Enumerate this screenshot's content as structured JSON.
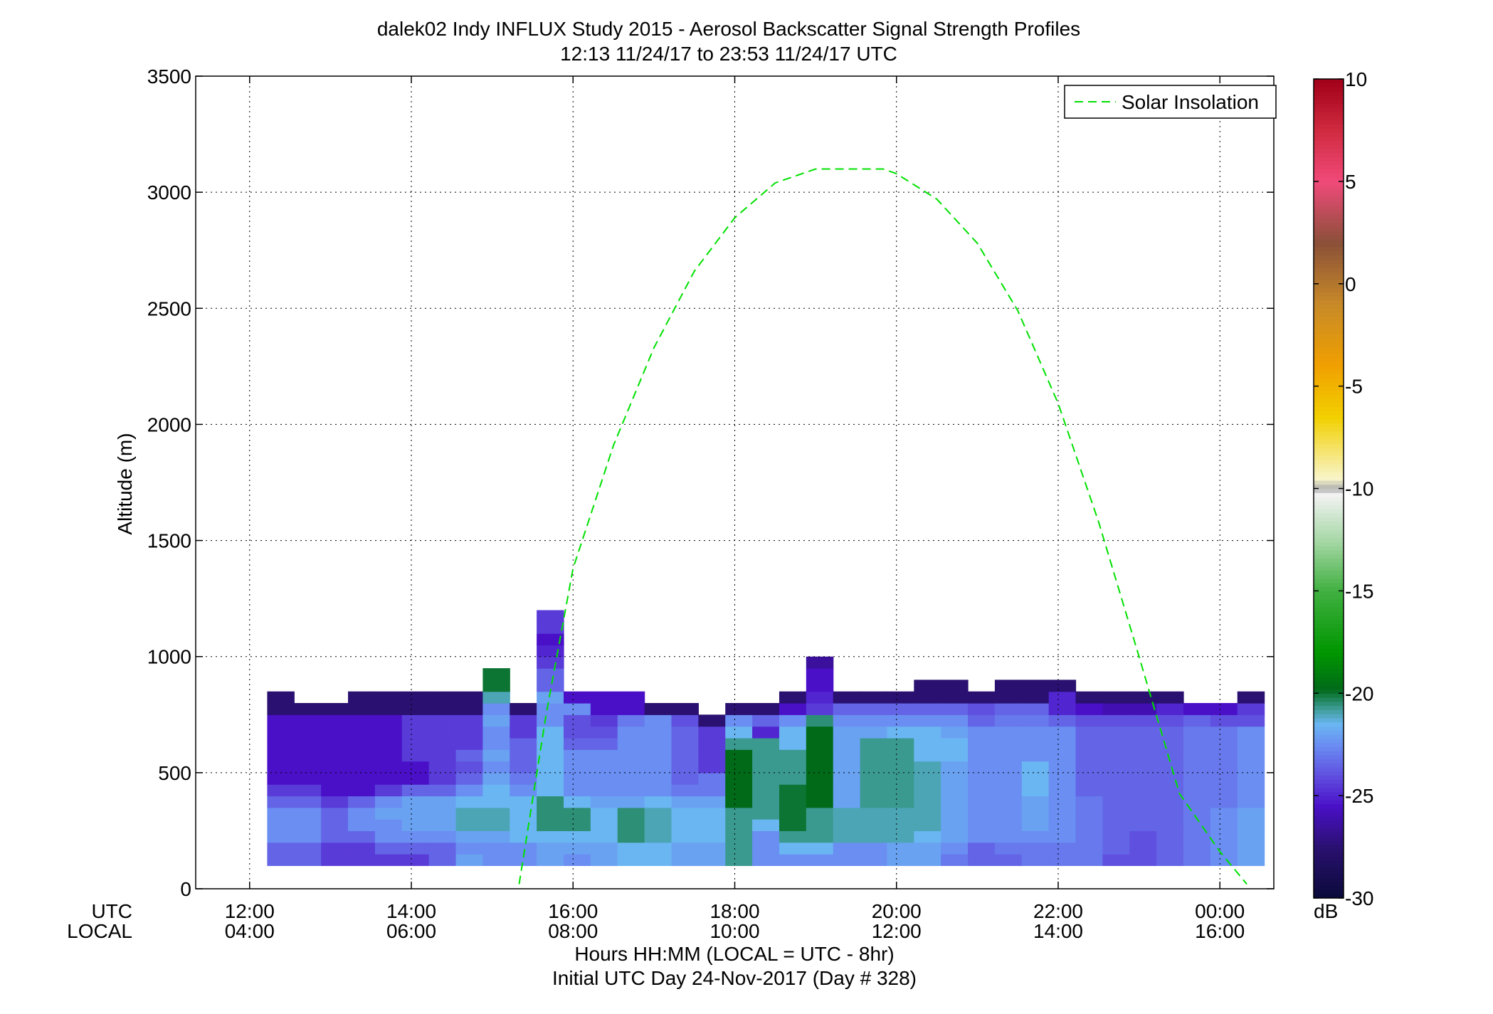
{
  "chart_data": {
    "type": "heatmap",
    "title": "dalek02 Indy INFLUX Study 2015 - Aerosol Backscatter Signal Strength Profiles",
    "subtitle": "12:13 11/24/17 to 23:53 11/24/17  UTC",
    "ylabel": "Altitude (m)",
    "xlabel": "Hours HH:MM  (LOCAL = UTC - 8hr)",
    "xlabel2": "Initial UTC Day 24-Nov-2017 (Day # 328)",
    "axis_row_labels": [
      "UTC",
      "LOCAL"
    ],
    "x_unit": "hours UTC",
    "xlim": [
      11.333,
      24.667
    ],
    "ylim": [
      0,
      3500
    ],
    "grid": true,
    "legend": {
      "position": "top-right",
      "entries": [
        "Solar Insolation"
      ]
    },
    "x_ticks": [
      {
        "value": 12,
        "utc": "12:00",
        "local": "04:00"
      },
      {
        "value": 14,
        "utc": "14:00",
        "local": "06:00"
      },
      {
        "value": 16,
        "utc": "16:00",
        "local": "08:00"
      },
      {
        "value": 18,
        "utc": "18:00",
        "local": "10:00"
      },
      {
        "value": 20,
        "utc": "20:00",
        "local": "12:00"
      },
      {
        "value": 22,
        "utc": "22:00",
        "local": "14:00"
      },
      {
        "value": 24,
        "utc": "00:00",
        "local": "16:00"
      }
    ],
    "y_ticks": [
      {
        "value": 0,
        "label": "0"
      },
      {
        "value": 500,
        "label": "500"
      },
      {
        "value": 1000,
        "label": "1000"
      },
      {
        "value": 1500,
        "label": "1500"
      },
      {
        "value": 2000,
        "label": "2000"
      },
      {
        "value": 2500,
        "label": "2500"
      },
      {
        "value": 3000,
        "label": "3000"
      },
      {
        "value": 3500,
        "label": "3500"
      }
    ],
    "colorbar": {
      "unit": "dB",
      "range": [
        -30,
        10
      ],
      "ticks": [
        {
          "value": 10,
          "label": "10"
        },
        {
          "value": 5,
          "label": "5"
        },
        {
          "value": 0,
          "label": "0"
        },
        {
          "value": -5,
          "label": "-5"
        },
        {
          "value": -10,
          "label": "-10"
        },
        {
          "value": -15,
          "label": "-15"
        },
        {
          "value": -20,
          "label": "-20"
        },
        {
          "value": -25,
          "label": "-25"
        },
        {
          "value": -30,
          "label": "-30"
        }
      ],
      "stops": [
        {
          "value": -30,
          "color": "#0a0a3a"
        },
        {
          "value": -27.5,
          "color": "#2a1070"
        },
        {
          "value": -25.5,
          "color": "#4a10c8"
        },
        {
          "value": -24,
          "color": "#6050e0"
        },
        {
          "value": -22.5,
          "color": "#6a8ef2"
        },
        {
          "value": -21.5,
          "color": "#6ab6f2"
        },
        {
          "value": -20.7,
          "color": "#3a9a90"
        },
        {
          "value": -19.8,
          "color": "#006a18"
        },
        {
          "value": -18,
          "color": "#009600"
        },
        {
          "value": -15,
          "color": "#40b040"
        },
        {
          "value": -12.5,
          "color": "#a8d8a8"
        },
        {
          "value": -10.3,
          "color": "#f2f2f2"
        },
        {
          "value": -10,
          "color": "#b0b0b0"
        },
        {
          "value": -9.5,
          "color": "#f8f4c8"
        },
        {
          "value": -6.5,
          "color": "#f2d000"
        },
        {
          "value": -4,
          "color": "#f0a000"
        },
        {
          "value": -1,
          "color": "#c88a28"
        },
        {
          "value": 2,
          "color": "#8a5038"
        },
        {
          "value": 5,
          "color": "#f04a7a"
        },
        {
          "value": 7.5,
          "color": "#d02a40"
        },
        {
          "value": 10,
          "color": "#a00018"
        }
      ]
    },
    "heatmap": {
      "x_start": 12.217,
      "column_width_hours": 0.3333,
      "y_start": 100,
      "row_height_m": 50,
      "columns": [
        [
          -23.5,
          -23.5,
          -22.5,
          -22.5,
          -22.5,
          -23.5,
          -24.5,
          -25.5,
          -25.5,
          -25.5,
          -25.5,
          -25.5,
          -25.5,
          -27.5,
          -27.5
        ],
        [
          -23.5,
          -23.5,
          -22.5,
          -22.5,
          -22.5,
          -23.5,
          -24.5,
          -25.5,
          -25.5,
          -25.5,
          -25.5,
          -25.5,
          -25.5,
          -27.5
        ],
        [
          -24.5,
          -24.5,
          -23.5,
          -23.5,
          -23.5,
          -24.5,
          -25.5,
          -25.5,
          -25.5,
          -25.5,
          -25.5,
          -25.5,
          -25.5,
          -27.5
        ],
        [
          -24.5,
          -24.5,
          -23.5,
          -22.5,
          -22.5,
          -23.5,
          -25.5,
          -25.5,
          -25.5,
          -25.5,
          -25.5,
          -25.5,
          -25.5,
          -27.5,
          -27.5
        ],
        [
          -24.5,
          -23.5,
          -22.5,
          -22.5,
          -22,
          -22.5,
          -24.5,
          -25.5,
          -25.5,
          -25.5,
          -25.5,
          -25.5,
          -25.5,
          -27.5,
          -27.5
        ],
        [
          -24.5,
          -23.5,
          -22.5,
          -22,
          -22,
          -22,
          -23.5,
          -25.5,
          -25.5,
          -24.5,
          -24.5,
          -24.5,
          -24.5,
          -27.5,
          -27.5
        ],
        [
          -23.5,
          -23.5,
          -22.5,
          -22,
          -22,
          -22,
          -23.5,
          -24.5,
          -24.5,
          -24.5,
          -24.5,
          -24.5,
          -24.5,
          -27.5,
          -27.5
        ],
        [
          -22,
          -22.5,
          -22,
          -21,
          -21,
          -21.5,
          -22.5,
          -23.5,
          -24,
          -23.5,
          -24.5,
          -24.5,
          -24.5,
          -27.5,
          -27.5
        ],
        [
          -22.5,
          -22.5,
          -22,
          -21,
          -21,
          -21.5,
          -21.5,
          -22,
          -22.5,
          -22,
          -22.5,
          -22.5,
          -22,
          -22.5,
          -21,
          -20,
          -20
        ],
        [
          -22.5,
          -22.5,
          -21.5,
          -21.5,
          -21.5,
          -21.5,
          -22.5,
          -23,
          -23.5,
          -23.5,
          -23.5,
          -24.5,
          -24.5,
          -27.5
        ],
        [
          -22,
          -22,
          -21.5,
          -20.5,
          -20.5,
          -20.5,
          -21.5,
          -21.5,
          -21.5,
          -21.5,
          -21.5,
          -21.5,
          -22.5,
          -22.5,
          -22,
          -23.5,
          -23.5,
          -24.5,
          -25,
          -25.5,
          -24.5,
          -24.5
        ],
        [
          -22.5,
          -22,
          -21.5,
          -20.5,
          -20.5,
          -21.5,
          -22.5,
          -22.5,
          -22.5,
          -22.5,
          -23.5,
          -24,
          -24,
          -22.5,
          -25.5
        ],
        [
          -22,
          -22,
          -21.5,
          -21.5,
          -21.5,
          -22,
          -22.5,
          -22.5,
          -22.5,
          -22.5,
          -23.5,
          -24,
          -24.5,
          -25.5,
          -25.5
        ],
        [
          -21.5,
          -21.5,
          -20.5,
          -20.5,
          -20.5,
          -22,
          -22.5,
          -22.5,
          -22.5,
          -22.5,
          -22.5,
          -22.5,
          -23,
          -25.5,
          -25.5
        ],
        [
          -21.5,
          -21.5,
          -21,
          -21,
          -21,
          -21.5,
          -22.5,
          -22.5,
          -22.5,
          -22.5,
          -22.5,
          -22.5,
          -22.5,
          -27.5
        ],
        [
          -22,
          -22,
          -21.5,
          -21.5,
          -21.5,
          -22,
          -23,
          -23.5,
          -23.5,
          -23.5,
          -23.5,
          -23.5,
          -24,
          -27.5
        ],
        [
          -22,
          -22,
          -21.5,
          -21.5,
          -21.5,
          -22,
          -23,
          -23,
          -24.5,
          -24.5,
          -24.5,
          -24.5,
          -27.5
        ],
        [
          -20.7,
          -20.7,
          -20.7,
          -20.7,
          -20.7,
          -19.8,
          -19.8,
          -19.8,
          -19.8,
          -19.8,
          -20.7,
          -21.5,
          -22.5,
          -27.5
        ],
        [
          -22.5,
          -22.5,
          -22.5,
          -21.5,
          -20.7,
          -20.7,
          -20.7,
          -20.7,
          -20.7,
          -20.7,
          -20.7,
          -25,
          -23.5,
          -27.5
        ],
        [
          -22.5,
          -21.5,
          -20.7,
          -20,
          -20,
          -20,
          -20,
          -20.7,
          -20.7,
          -20.7,
          -21.5,
          -21.5,
          -22.5,
          -25.5,
          -27.5
        ],
        [
          -22.5,
          -21.5,
          -20.7,
          -20.7,
          -20.7,
          -19.8,
          -19.8,
          -19.8,
          -19.8,
          -19.8,
          -19.8,
          -19.8,
          -20.5,
          -24.5,
          -25,
          -25.5,
          -25.5,
          -26.5
        ],
        [
          -22.5,
          -22.5,
          -21,
          -21,
          -21,
          -22,
          -22,
          -22,
          -22,
          -22,
          -22,
          -22,
          -22.5,
          -23.5,
          -27.5
        ],
        [
          -22.5,
          -22.5,
          -21,
          -21,
          -21,
          -20.7,
          -20.7,
          -20.7,
          -20.7,
          -20.7,
          -20.7,
          -22,
          -22.5,
          -23.5,
          -27.5
        ],
        [
          -22,
          -22,
          -21,
          -21,
          -21,
          -20.7,
          -20.7,
          -20.7,
          -20.7,
          -20.7,
          -20.7,
          -21.5,
          -22.5,
          -23.5,
          -27.5
        ],
        [
          -22,
          -22,
          -21.5,
          -21,
          -21,
          -21,
          -21,
          -21,
          -21,
          -21.5,
          -21.5,
          -21.5,
          -22.5,
          -23.5,
          -27.5,
          -27.5
        ],
        [
          -23,
          -22.5,
          -22,
          -22,
          -22,
          -22,
          -22,
          -22,
          -22,
          -21.5,
          -21.5,
          -22,
          -22.5,
          -23.5,
          -27.5,
          -27.5
        ],
        [
          -23.5,
          -23.5,
          -22.5,
          -22.5,
          -22.5,
          -22.5,
          -22.5,
          -22.5,
          -22.5,
          -22.5,
          -22.5,
          -22.5,
          -23.5,
          -24,
          -27.5
        ],
        [
          -23.5,
          -23,
          -22.5,
          -22.5,
          -22.5,
          -22.5,
          -22.5,
          -22.5,
          -22.5,
          -22.5,
          -22.5,
          -22.5,
          -23,
          -23.5,
          -27.5,
          -27.5
        ],
        [
          -23,
          -23,
          -22.5,
          -22,
          -22,
          -22,
          -21.5,
          -21.5,
          -21.5,
          -22.5,
          -22.5,
          -22.5,
          -23,
          -23.5,
          -27.5,
          -27.5
        ],
        [
          -23,
          -23,
          -22.5,
          -22.5,
          -22.5,
          -22.5,
          -22.5,
          -22.5,
          -22.5,
          -22.5,
          -22.5,
          -22.5,
          -23.5,
          -25,
          -25,
          -27.5
        ],
        [
          -23,
          -23,
          -23,
          -23,
          -23,
          -23,
          -23.5,
          -23.5,
          -23.5,
          -23.5,
          -23.5,
          -23.5,
          -24,
          -25.5,
          -27.5
        ],
        [
          -24,
          -23.5,
          -23.5,
          -23.5,
          -23.5,
          -23.5,
          -23.5,
          -23.5,
          -23.5,
          -23.5,
          -23.5,
          -23.5,
          -24,
          -26,
          -27.5
        ],
        [
          -24,
          -24,
          -24,
          -23.5,
          -23.5,
          -23.5,
          -23.5,
          -23.5,
          -23.5,
          -23.5,
          -23.5,
          -23.5,
          -24,
          -26,
          -27.5
        ],
        [
          -23.5,
          -23.5,
          -23.5,
          -23.5,
          -23.5,
          -23.5,
          -23.5,
          -23.5,
          -23.5,
          -23.5,
          -23.5,
          -23.5,
          -24,
          -25,
          -27.5
        ],
        [
          -23,
          -23,
          -23,
          -23,
          -23,
          -23,
          -23,
          -23,
          -23,
          -23,
          -23,
          -23,
          -23.5,
          -25.5
        ],
        [
          -22.5,
          -22.5,
          -22.5,
          -22.5,
          -22.5,
          -23,
          -23,
          -23,
          -23,
          -23,
          -23,
          -23,
          -24,
          -25.5
        ],
        [
          -22,
          -22,
          -22,
          -22,
          -22,
          -22.5,
          -22.5,
          -22.5,
          -22.5,
          -22.5,
          -22.5,
          -22.5,
          -24,
          -24.5,
          -27.5
        ]
      ]
    },
    "series": [
      {
        "name": "Solar Insolation",
        "style": "dashed",
        "color": "#00e000",
        "x": [
          15.333,
          15.667,
          16.0,
          16.5,
          17.0,
          17.5,
          18.0,
          18.5,
          19.0,
          19.5,
          19.833,
          20.0,
          20.5,
          21.0,
          21.5,
          22.0,
          22.5,
          23.0,
          23.5,
          24.0,
          24.333
        ],
        "y": [
          20,
          750,
          1380,
          1910,
          2330,
          2660,
          2890,
          3040,
          3100,
          3100,
          3100,
          3080,
          2970,
          2780,
          2490,
          2090,
          1580,
          1000,
          410,
          160,
          20
        ]
      }
    ]
  }
}
